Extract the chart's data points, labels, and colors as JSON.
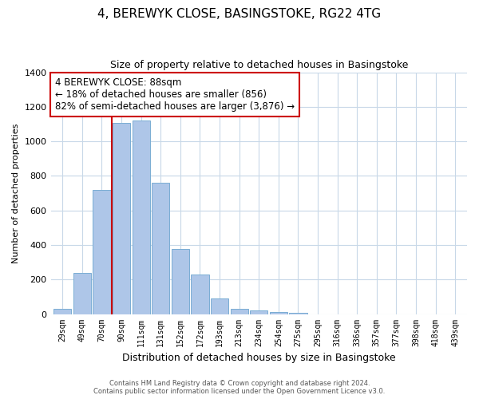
{
  "title_line1": "4, BEREWYK CLOSE, BASINGSTOKE, RG22 4TG",
  "title_line2": "Size of property relative to detached houses in Basingstoke",
  "xlabel": "Distribution of detached houses by size in Basingstoke",
  "ylabel": "Number of detached properties",
  "bar_labels": [
    "29sqm",
    "49sqm",
    "70sqm",
    "90sqm",
    "111sqm",
    "131sqm",
    "152sqm",
    "172sqm",
    "193sqm",
    "213sqm",
    "234sqm",
    "254sqm",
    "275sqm",
    "295sqm",
    "316sqm",
    "336sqm",
    "357sqm",
    "377sqm",
    "398sqm",
    "418sqm",
    "439sqm"
  ],
  "bar_values": [
    30,
    240,
    720,
    1105,
    1120,
    760,
    375,
    230,
    90,
    30,
    20,
    10,
    5,
    0,
    0,
    0,
    0,
    0,
    0,
    0,
    0
  ],
  "bar_color": "#aec6e8",
  "bar_edge_color": "#7aadd4",
  "vline_x_idx": 3,
  "vline_color": "#cc0000",
  "annotation_title": "4 BEREWYK CLOSE: 88sqm",
  "annotation_line1": "← 18% of detached houses are smaller (856)",
  "annotation_line2": "82% of semi-detached houses are larger (3,876) →",
  "annotation_box_color": "#ffffff",
  "annotation_box_edge": "#cc0000",
  "ylim": [
    0,
    1400
  ],
  "yticks": [
    0,
    200,
    400,
    600,
    800,
    1000,
    1200,
    1400
  ],
  "footer_line1": "Contains HM Land Registry data © Crown copyright and database right 2024.",
  "footer_line2": "Contains public sector information licensed under the Open Government Licence v3.0.",
  "bg_color": "#ffffff",
  "grid_color": "#c8d8e8"
}
